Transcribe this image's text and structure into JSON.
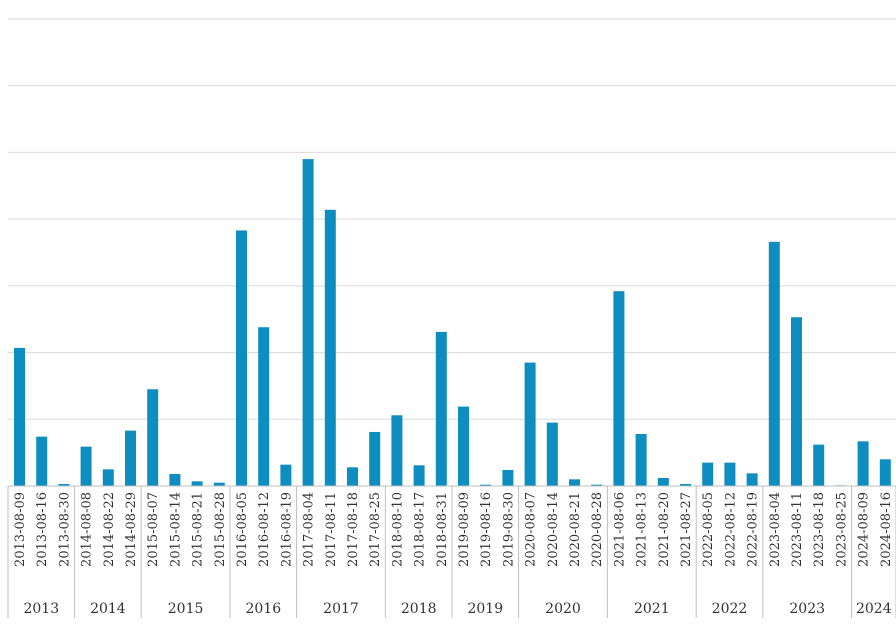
{
  "chart_data": {
    "type": "bar",
    "categories": [
      "2013-08-09",
      "2013-08-16",
      "2013-08-30",
      "2014-08-08",
      "2014-08-22",
      "2014-08-29",
      "2015-08-07",
      "2015-08-14",
      "2015-08-21",
      "2015-08-28",
      "2016-08-05",
      "2016-08-12",
      "2016-08-19",
      "2017-08-04",
      "2017-08-11",
      "2017-08-18",
      "2017-08-25",
      "2018-08-10",
      "2018-08-17",
      "2018-08-31",
      "2019-08-09",
      "2019-08-16",
      "2019-08-30",
      "2020-08-07",
      "2020-08-14",
      "2020-08-21",
      "2020-08-28",
      "2021-08-06",
      "2021-08-13",
      "2021-08-20",
      "2021-08-27",
      "2022-08-05",
      "2022-08-12",
      "2022-08-19",
      "2023-08-04",
      "2023-08-11",
      "2023-08-18",
      "2023-08-25",
      "2024-08-09",
      "2024-08-16"
    ],
    "values": [
      2.07,
      0.74,
      0.03,
      0.59,
      0.25,
      0.83,
      1.45,
      0.18,
      0.07,
      0.05,
      3.83,
      2.38,
      0.32,
      4.9,
      4.14,
      0.28,
      0.81,
      1.06,
      0.31,
      2.31,
      1.19,
      0.02,
      0.24,
      1.85,
      0.95,
      0.1,
      0.02,
      2.92,
      0.78,
      0.12,
      0.03,
      0.35,
      0.35,
      0.19,
      3.66,
      2.53,
      0.62,
      0.01,
      0.67,
      0.4
    ],
    "year_groups": [
      {
        "label": "2013",
        "count": 3
      },
      {
        "label": "2014",
        "count": 3
      },
      {
        "label": "2015",
        "count": 4
      },
      {
        "label": "2016",
        "count": 3
      },
      {
        "label": "2017",
        "count": 4
      },
      {
        "label": "2018",
        "count": 3
      },
      {
        "label": "2019",
        "count": 3
      },
      {
        "label": "2020",
        "count": 4
      },
      {
        "label": "2021",
        "count": 4
      },
      {
        "label": "2022",
        "count": 3
      },
      {
        "label": "2023",
        "count": 4
      },
      {
        "label": "2024",
        "count": 2
      }
    ],
    "title": "",
    "xlabel": "",
    "ylabel": "",
    "ylim": [
      0,
      7
    ],
    "grid": true,
    "bar_color": "#0e8dc1",
    "grid_color": "#d9d9d9"
  }
}
